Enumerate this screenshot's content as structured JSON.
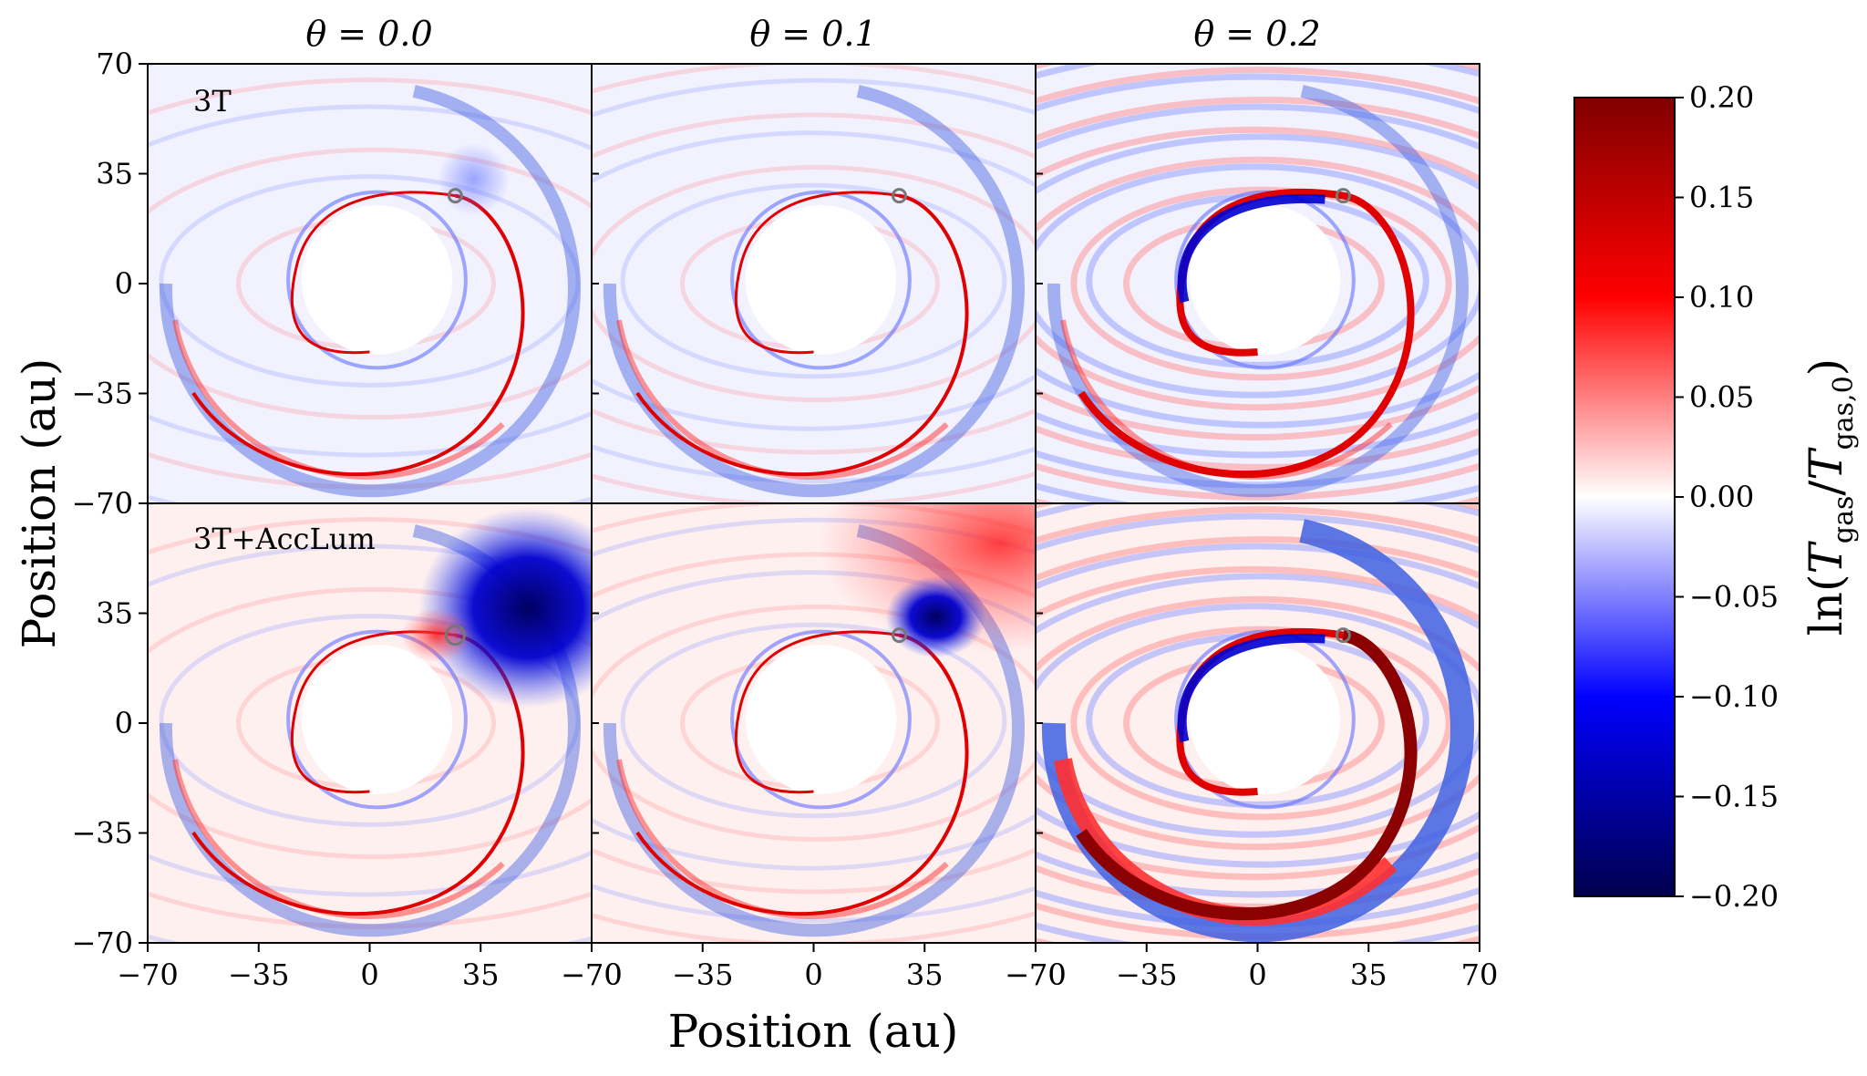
{
  "chart_data": {
    "type": "heatmap",
    "description_fields": {
      "x_axis_label": "Position (au)",
      "y_axis_label": "Position (au)",
      "colorbar_label": "ln(T_gas/T_gas,0)"
    },
    "columns": [
      {
        "title": "θ = 0.0",
        "theta": 0.0
      },
      {
        "title": "θ = 0.1",
        "theta": 0.1
      },
      {
        "title": "θ = 0.2",
        "theta": 0.2
      }
    ],
    "rows": [
      {
        "label": "3T"
      },
      {
        "label": "3T+AccLum"
      }
    ],
    "xlim": [
      -70,
      70
    ],
    "ylim": [
      -70,
      70
    ],
    "x_ticks": [
      "−70",
      "−35",
      "0",
      "35",
      "70"
    ],
    "x_ticks_overlap": [
      "−70",
      "−35",
      "0",
      "35",
      "−70"
    ],
    "y_ticks": [
      "70",
      "35",
      "0",
      "−35",
      "−70"
    ],
    "planet_position_au": [
      27,
      28
    ],
    "colorbar": {
      "vmin": -0.2,
      "vmax": 0.2,
      "colormap": "seismic",
      "ticks": [
        "0.20",
        "0.15",
        "0.10",
        "0.05",
        "0.00",
        "−0.05",
        "−0.10",
        "−0.15",
        "−0.20"
      ],
      "label": "ln(Tgas/Tgas,0)"
    },
    "colors": {
      "deep_red": "#800000",
      "red": "#ff0000",
      "white": "#ffffff",
      "blue": "#0000ff",
      "deep_blue": "#00004c"
    }
  }
}
